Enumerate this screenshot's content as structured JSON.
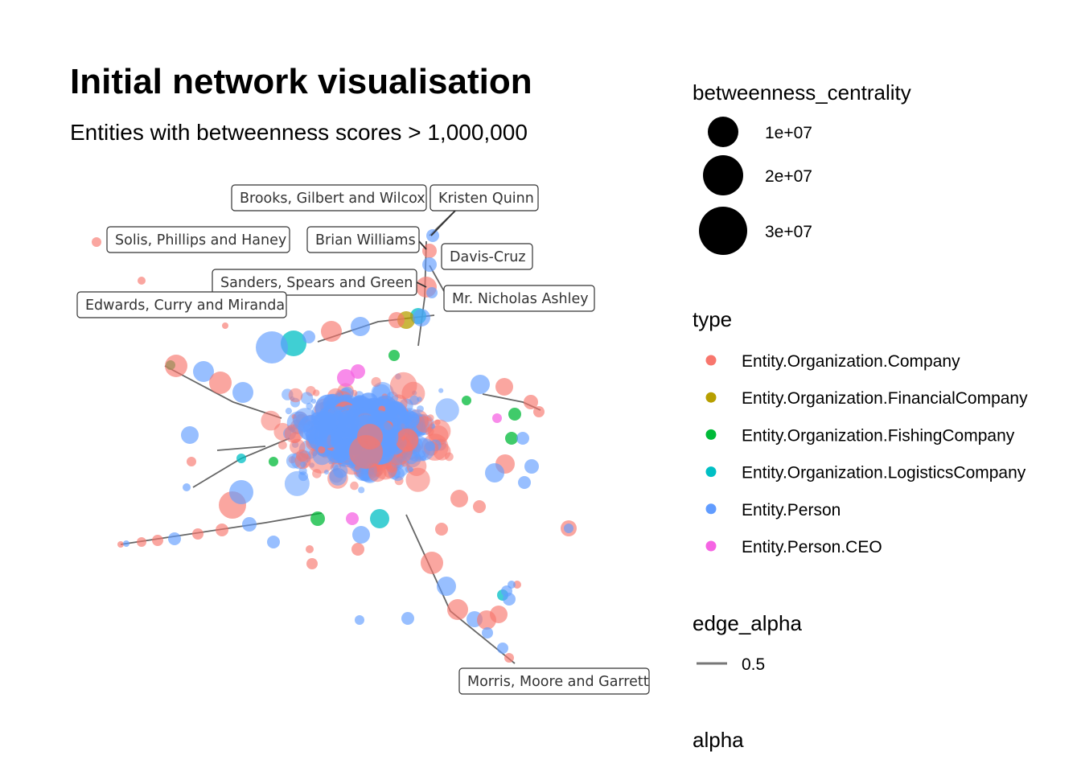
{
  "title": "Initial network visualisation",
  "subtitle": "Entities with betweenness scores > 1,000,000",
  "colors": {
    "Entity.Organization.Company": "#F8766D",
    "Entity.Organization.FinancialCompany": "#B79F00",
    "Entity.Organization.FishingCompany": "#00BA38",
    "Entity.Organization.LogisticsCompany": "#00BFC4",
    "Entity.Person": "#619CFF",
    "Entity.Person.CEO": "#F564E3"
  },
  "legend": {
    "size_title": "betweenness_centrality",
    "size_entries": [
      {
        "label": "1e+07",
        "value": 10000000
      },
      {
        "label": "2e+07",
        "value": 20000000
      },
      {
        "label": "3e+07",
        "value": 30000000
      }
    ],
    "type_title": "type",
    "type_entries": [
      {
        "label": "Entity.Organization.Company",
        "color": "#F8766D"
      },
      {
        "label": "Entity.Organization.FinancialCompany",
        "color": "#B79F00"
      },
      {
        "label": "Entity.Organization.FishingCompany",
        "color": "#00BA38"
      },
      {
        "label": "Entity.Organization.LogisticsCompany",
        "color": "#00BFC4"
      },
      {
        "label": "Entity.Person",
        "color": "#619CFF"
      },
      {
        "label": "Entity.Person.CEO",
        "color": "#F564E3"
      }
    ],
    "edge_title": "edge_alpha",
    "edge_entries": [
      {
        "label": "0.5"
      }
    ],
    "alpha_title": "alpha"
  },
  "chart_data": {
    "type": "scatter",
    "title": "Initial network visualisation",
    "subtitle": "Entities with betweenness scores > 1,000,000",
    "xlabel": "",
    "ylabel": "",
    "grid": false,
    "legend_position": "right",
    "labeled_nodes": [
      {
        "name": "Brooks, Gilbert and Wilcox"
      },
      {
        "name": "Kristen Quinn"
      },
      {
        "name": "Solis, Phillips and Haney"
      },
      {
        "name": "Brian Williams"
      },
      {
        "name": "Davis-Cruz"
      },
      {
        "name": "Sanders, Spears and Green"
      },
      {
        "name": "Mr. Nicholas Ashley"
      },
      {
        "name": "Edwards, Curry and Miranda"
      },
      {
        "name": "Morris, Moore and Garrett"
      }
    ]
  }
}
